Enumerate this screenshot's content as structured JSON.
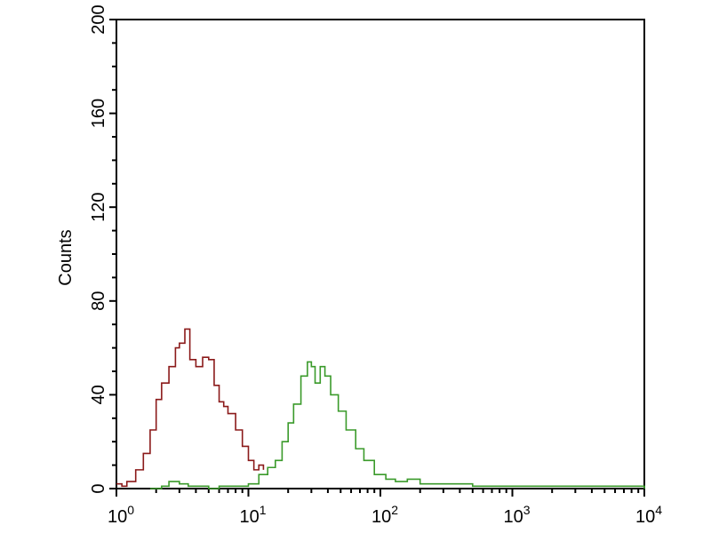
{
  "chart_data": {
    "type": "line",
    "title": "",
    "xlabel": "",
    "ylabel": "Counts",
    "x_scale": "log",
    "xlim": [
      1,
      10000
    ],
    "ylim": [
      0,
      200
    ],
    "grid": false,
    "y_ticks": [
      "0",
      "40",
      "80",
      "120",
      "160",
      "200"
    ],
    "x_ticks": [
      {
        "base": "10",
        "exp": "0"
      },
      {
        "base": "10",
        "exp": "1"
      },
      {
        "base": "10",
        "exp": "2"
      },
      {
        "base": "10",
        "exp": "3"
      },
      {
        "base": "10",
        "exp": "4"
      }
    ],
    "series": [
      {
        "color": "#8b1a1a",
        "x": [
          1.0,
          1.1,
          1.2,
          1.4,
          1.6,
          1.8,
          2.0,
          2.2,
          2.5,
          2.8,
          3.0,
          3.3,
          3.6,
          4.0,
          4.5,
          5.0,
          5.5,
          6.0,
          6.5,
          7.0,
          8.0,
          9.0,
          10,
          11,
          12,
          13
        ],
        "y": [
          2,
          1,
          3,
          8,
          15,
          25,
          38,
          45,
          52,
          60,
          62,
          68,
          55,
          52,
          56,
          55,
          44,
          37,
          35,
          32,
          25,
          18,
          12,
          8,
          10,
          8
        ]
      },
      {
        "color": "#3a9a2a",
        "x": [
          1.8,
          2.2,
          2.5,
          3.0,
          3.5,
          4,
          5,
          6,
          8,
          10,
          12,
          14,
          16,
          18,
          20,
          22,
          25,
          28,
          30,
          32,
          35,
          38,
          42,
          48,
          55,
          65,
          75,
          90,
          110,
          130,
          160,
          200,
          300,
          500,
          1000,
          2000,
          5000,
          10000
        ],
        "y": [
          0,
          1,
          3,
          2,
          1,
          1,
          0,
          1,
          1,
          2,
          6,
          9,
          12,
          20,
          28,
          36,
          48,
          54,
          52,
          45,
          52,
          48,
          40,
          33,
          25,
          17,
          12,
          6,
          4,
          3,
          4,
          2,
          2,
          1,
          1,
          1,
          1,
          0
        ]
      }
    ]
  }
}
